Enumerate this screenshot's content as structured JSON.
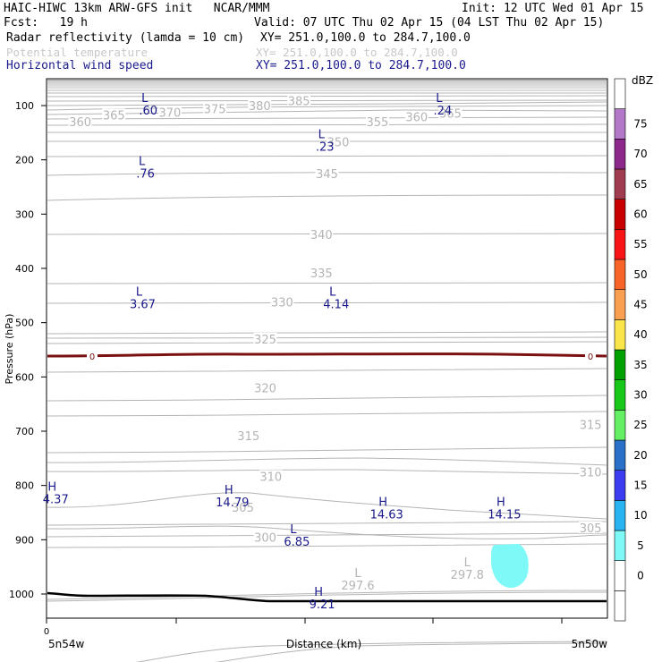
{
  "header": {
    "title": "HAIC-HIWC 13km ARW-GFS init   NCAR/MMM",
    "init": "Init: 12 UTC Wed 01 Apr 15",
    "fcst": "Fcst:   19 h",
    "valid": "Valid: 07 UTC Thu 02 Apr 15 (04 LST Thu 02 Apr 15)",
    "fields": [
      {
        "label": "Radar reflectivity (lamda = 10 cm)",
        "xy": "XY= 251.0,100.0 to 284.7,100.0",
        "color": "#000000"
      },
      {
        "label": "Potential temperature",
        "xy": "XY= 251.0,100.0 to 284.7,100.0",
        "color": "#c8c8c8"
      },
      {
        "label": "Horizontal wind speed",
        "xy": "XY= 251.0,100.0 to 284.7,100.0",
        "color": "#1a1a8c"
      }
    ]
  },
  "chart_data": {
    "type": "contour",
    "ylabel": "Pressure (hPa)",
    "xlabel": "Distance (km)",
    "y_ticks": [
      100,
      200,
      300,
      400,
      500,
      600,
      700,
      800,
      900,
      1000
    ],
    "ylim": [
      1050,
      50
    ],
    "x_tick_label": "0",
    "x_left_label": "5n54w",
    "x_right_label": "5n50w",
    "colorbar": {
      "unit": "dBZ",
      "levels": [
        0,
        5,
        10,
        15,
        20,
        25,
        30,
        35,
        40,
        45,
        50,
        55,
        60,
        65,
        70,
        75
      ],
      "colors": [
        "#ffffff",
        "#ffffff",
        "#7ff8f8",
        "#28b4f0",
        "#3c3cf0",
        "#2870c8",
        "#64f064",
        "#18c818",
        "#00a000",
        "#f8e64b",
        "#f8a050",
        "#f86428",
        "#f81414",
        "#c80000",
        "#a03c50",
        "#8c288c",
        "#b478c8",
        "#ffffff"
      ]
    },
    "theta_labels": [
      {
        "text": "360",
        "x": 0.06,
        "p": 130
      },
      {
        "text": "365",
        "x": 0.12,
        "p": 117
      },
      {
        "text": "370",
        "x": 0.22,
        "p": 112
      },
      {
        "text": "375",
        "x": 0.3,
        "p": 106
      },
      {
        "text": "380",
        "x": 0.38,
        "p": 100
      },
      {
        "text": "385",
        "x": 0.45,
        "p": 91
      },
      {
        "text": "355",
        "x": 0.59,
        "p": 130
      },
      {
        "text": "360",
        "x": 0.66,
        "p": 121
      },
      {
        "text": "365",
        "x": 0.72,
        "p": 114
      },
      {
        "text": "350",
        "x": 0.52,
        "p": 167
      },
      {
        "text": "345",
        "x": 0.5,
        "p": 225
      },
      {
        "text": "340",
        "x": 0.49,
        "p": 337
      },
      {
        "text": "335",
        "x": 0.49,
        "p": 408
      },
      {
        "text": "330",
        "x": 0.42,
        "p": 462
      },
      {
        "text": "325",
        "x": 0.39,
        "p": 530
      },
      {
        "text": "320",
        "x": 0.39,
        "p": 620
      },
      {
        "text": "315",
        "x": 0.36,
        "p": 708
      },
      {
        "text": "315",
        "x": 0.97,
        "p": 688
      },
      {
        "text": "310",
        "x": 0.4,
        "p": 783
      },
      {
        "text": "310",
        "x": 0.97,
        "p": 775
      },
      {
        "text": "305",
        "x": 0.35,
        "p": 840
      },
      {
        "text": "305",
        "x": 0.97,
        "p": 878
      },
      {
        "text": "300",
        "x": 0.39,
        "p": 895
      }
    ],
    "wind_marks": [
      {
        "type": "L",
        "value": ".60",
        "x": 0.175,
        "p": 93
      },
      {
        "type": "L",
        "value": ".24",
        "x": 0.7,
        "p": 93
      },
      {
        "type": "L",
        "value": ".23",
        "x": 0.49,
        "p": 160
      },
      {
        "type": "L",
        "value": ".76",
        "x": 0.17,
        "p": 210
      },
      {
        "type": "L",
        "value": "3.67",
        "x": 0.165,
        "p": 450
      },
      {
        "type": "L",
        "value": "4.14",
        "x": 0.51,
        "p": 450
      },
      {
        "type": "H",
        "value": "4.37",
        "x": 0.01,
        "p": 810
      },
      {
        "type": "H",
        "value": "14.79",
        "x": 0.325,
        "p": 815
      },
      {
        "type": "H",
        "value": "14.63",
        "x": 0.6,
        "p": 838
      },
      {
        "type": "H",
        "value": "14.15",
        "x": 0.81,
        "p": 838
      },
      {
        "type": "L",
        "value": "6.85",
        "x": 0.44,
        "p": 888
      },
      {
        "type": "H",
        "value": "9.21",
        "x": 0.485,
        "p": 1003
      }
    ],
    "theta_marks": [
      {
        "type": "L",
        "value": "297.6",
        "x": 0.555,
        "p": 985
      },
      {
        "type": "L",
        "value": "297.8",
        "x": 0.75,
        "p": 965
      }
    ],
    "freezing_label": "0",
    "freezing_level_p": 562
  }
}
